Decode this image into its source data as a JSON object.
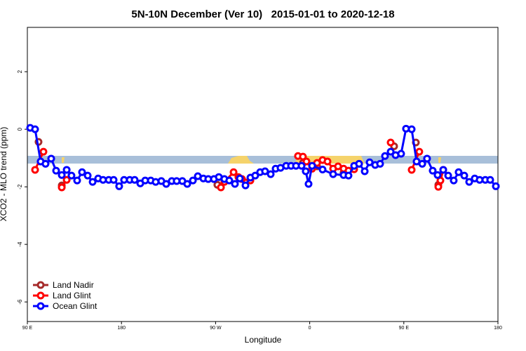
{
  "chart_data": {
    "type": "line",
    "title": "5N-10N December (Ver 10)   2015-01-01 to 2020-12-18",
    "x_label": "Longitude",
    "y_label": "XCO2 - MLO trend (ppm)",
    "xlim": [
      90,
      540
    ],
    "ylim": [
      -6.68,
      3.54
    ],
    "xticks": [
      {
        "value": 90,
        "label": "90 E"
      },
      {
        "value": 180,
        "label": "180"
      },
      {
        "value": 270,
        "label": "90 W"
      },
      {
        "value": 360,
        "label": "0"
      },
      {
        "value": 450,
        "label": "90 E"
      },
      {
        "value": 540,
        "label": "180"
      }
    ],
    "yticks": [
      -6,
      -4,
      -2,
      0,
      2
    ],
    "legend": "bottom-left",
    "series": [
      {
        "name": "Land Nadir",
        "color": "#a52a2a",
        "x": [
          100.7,
          null,
          122.9,
          null,
          271.7,
          null,
          353.5,
          367,
          null,
          392.4,
          null,
          440.7,
          null,
          461.5,
          null,
          483
        ],
        "values": [
          -0.44,
          null,
          -1.95,
          null,
          -1.93,
          null,
          -1.17,
          -1.29,
          null,
          -1.51,
          null,
          -0.59,
          null,
          -0.46,
          null,
          -1.93
        ]
      },
      {
        "name": "Land Glint",
        "color": "#ff0000",
        "x": [
          97.4,
          105.4,
          null,
          122.9,
          127.6,
          null,
          275.1,
          278.4,
          287.2,
          291.8,
          295.2,
          303.3,
          null,
          348.8,
          353.5,
          356.9,
          362.3,
          367,
          372.3,
          377,
          382.4,
          387.1,
          392.4,
          397.1,
          402.5,
          407.2,
          null,
          437.4,
          null,
          457.5,
          464.8,
          null,
          483,
          485,
          487.7
        ],
        "values": [
          -1.41,
          -0.78,
          null,
          -2.02,
          -1.76,
          null,
          -2.02,
          -1.83,
          -1.49,
          -1.66,
          -1.73,
          -1.78,
          null,
          -0.93,
          -0.95,
          -1.12,
          -1.37,
          -1.17,
          -1.07,
          -1.12,
          -1.37,
          -1.29,
          -1.37,
          -1.44,
          -1.39,
          -1.2,
          null,
          -0.46,
          null,
          -1.41,
          -0.78,
          null,
          -2.0,
          -1.78,
          -1.41
        ]
      },
      {
        "name": "Ocean Glint",
        "color": "#0000ff",
        "x": [
          92.7,
          97.4,
          102.7,
          107.4,
          112.8,
          117.5,
          122.9,
          127.6,
          132.2,
          137.6,
          142.3,
          147.7,
          152.4,
          157.7,
          162.4,
          167.8,
          172.5,
          177.8,
          182.5,
          187.9,
          192.6,
          198,
          202.7,
          208,
          212.7,
          218.1,
          222.8,
          228.1,
          232.8,
          238.2,
          242.9,
          248.3,
          253,
          258.3,
          263,
          268.4,
          273.1,
          278.4,
          283.1,
          288.5,
          293.2,
          298.6,
          303.3,
          307.9,
          312.6,
          317.3,
          322.7,
          327.4,
          332.1,
          337.5,
          342.2,
          346.9,
          352.2,
          356.2,
          358.9,
          362.3,
          372.3,
          382.4,
          392.4,
          397.1,
          402.5,
          407.2,
          412.6,
          417.3,
          422.6,
          427.3,
          432,
          437.4,
          442.1,
          447.4,
          452.1,
          457.5,
          462.2,
          467.6,
          472.2,
          477.6,
          482.3,
          487.7,
          492.4,
          497.7,
          502.4,
          507.8,
          512.5,
          517.8,
          522.5,
          527.9,
          532.6,
          538
        ],
        "values": [
          0.05,
          0,
          -1.12,
          -1.2,
          -1.02,
          -1.44,
          -1.59,
          -1.41,
          -1.61,
          -1.78,
          -1.49,
          -1.61,
          -1.83,
          -1.71,
          -1.76,
          -1.76,
          -1.76,
          -1.98,
          -1.76,
          -1.76,
          -1.76,
          -1.88,
          -1.78,
          -1.78,
          -1.83,
          -1.8,
          -1.9,
          -1.8,
          -1.8,
          -1.8,
          -1.9,
          -1.78,
          -1.63,
          -1.71,
          -1.73,
          -1.73,
          -1.66,
          -1.73,
          -1.78,
          -1.9,
          -1.71,
          -1.95,
          -1.68,
          -1.61,
          -1.49,
          -1.46,
          -1.56,
          -1.37,
          -1.34,
          -1.27,
          -1.27,
          -1.27,
          -1.27,
          -1.46,
          -1.9,
          -1.27,
          -1.4,
          -1.56,
          -1.59,
          -1.61,
          -1.27,
          -1.2,
          -1.46,
          -1.15,
          -1.24,
          -1.2,
          -0.93,
          -0.78,
          -0.9,
          -0.85,
          0.02,
          0,
          -1.12,
          -1.2,
          -1.02,
          -1.44,
          -1.59,
          -1.41,
          -1.61,
          -1.78,
          -1.49,
          -1.61,
          -1.83,
          -1.71,
          -1.76,
          -1.76,
          -1.76,
          -1.98
        ]
      }
    ]
  }
}
